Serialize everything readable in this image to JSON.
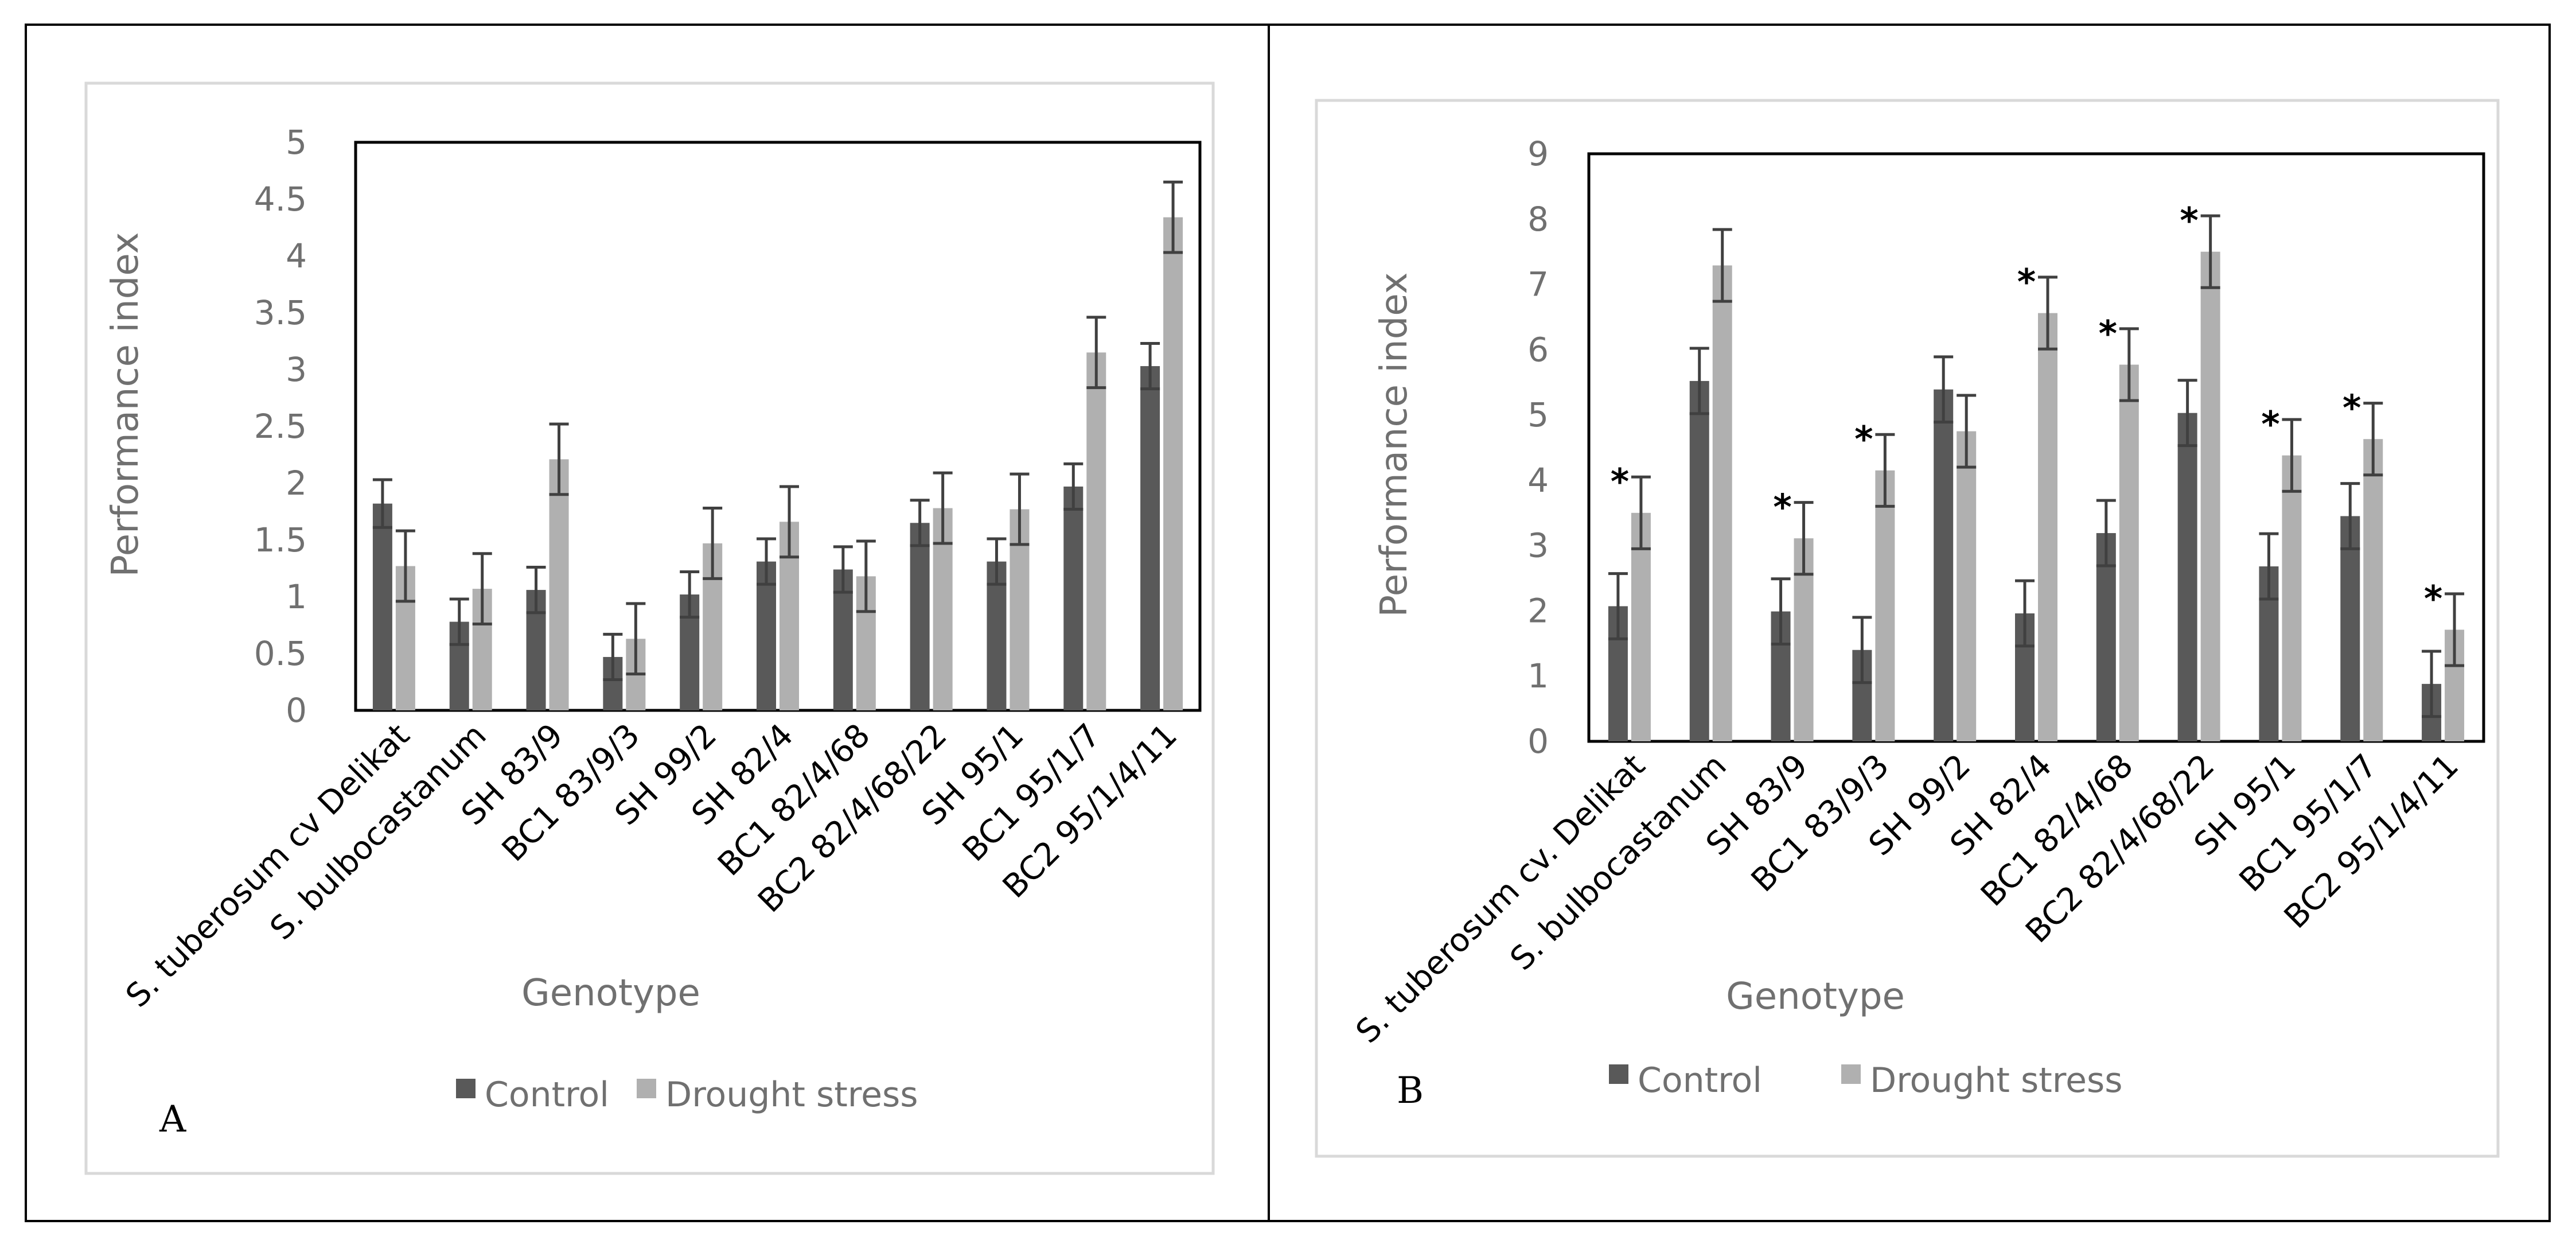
{
  "colors": {
    "control": "#595959",
    "drought": "#b0b0b0",
    "text": "#707070",
    "frame": "#000000",
    "panel_border": "#d9d9d9",
    "error_bar": "#404040"
  },
  "chart_data": [
    {
      "panel_label": "A",
      "type": "bar",
      "ylabel": "Performance index",
      "xlabel": "Genotype",
      "ylim": [
        0,
        5
      ],
      "yticks": [
        "0",
        "0.5",
        "1",
        "1.5",
        "2",
        "2.5",
        "3",
        "3.5",
        "4",
        "4.5",
        "5"
      ],
      "categories": [
        "S. tuberosum cv Delikat",
        "S. bulbocastanum",
        "SH 83/9",
        "BC1 83/9/3",
        "SH 99/2",
        "SH 82/4",
        "BC1 82/4/68",
        "BC2 82/4/68/22",
        "SH 95/1",
        "BC1 95/1/7",
        "BC2 95/1/4/11"
      ],
      "series": [
        {
          "name": "Control",
          "values": [
            1.82,
            0.78,
            1.06,
            0.47,
            1.02,
            1.31,
            1.24,
            1.65,
            1.31,
            1.97,
            3.03
          ],
          "errors": [
            0.21,
            0.2,
            0.2,
            0.2,
            0.2,
            0.2,
            0.2,
            0.2,
            0.2,
            0.2,
            0.2
          ]
        },
        {
          "name": "Drought stress",
          "values": [
            1.27,
            1.07,
            2.21,
            0.63,
            1.47,
            1.66,
            1.18,
            1.78,
            1.77,
            3.15,
            4.34
          ],
          "errors": [
            0.31,
            0.31,
            0.31,
            0.31,
            0.31,
            0.31,
            0.31,
            0.31,
            0.31,
            0.31,
            0.31
          ]
        }
      ],
      "legend": [
        "Control",
        "Drought stress"
      ],
      "significance": [
        false,
        false,
        false,
        false,
        false,
        false,
        false,
        false,
        false,
        false,
        false
      ]
    },
    {
      "panel_label": "B",
      "type": "bar",
      "ylabel": "Performance index",
      "xlabel": "Genotype",
      "ylim": [
        0,
        9
      ],
      "yticks": [
        "0",
        "1",
        "2",
        "3",
        "4",
        "5",
        "6",
        "7",
        "8",
        "9"
      ],
      "categories": [
        "S. tuberosum cv. Delikat",
        "S. bulbocastanum",
        "SH 83/9",
        "BC1 83/9/3",
        "SH 99/2",
        "SH 82/4",
        "BC1 82/4/68",
        "BC2 82/4/68/22",
        "SH 95/1",
        "BC1 95/1/7",
        "BC2 95/1/4/11"
      ],
      "series": [
        {
          "name": "Control",
          "values": [
            2.07,
            5.52,
            1.99,
            1.4,
            5.39,
            1.96,
            3.19,
            5.03,
            2.68,
            3.45,
            0.88
          ],
          "errors": [
            0.5,
            0.5,
            0.5,
            0.5,
            0.5,
            0.5,
            0.5,
            0.5,
            0.5,
            0.5,
            0.5
          ]
        },
        {
          "name": "Drought stress",
          "values": [
            3.5,
            7.29,
            3.11,
            4.15,
            4.75,
            6.56,
            5.77,
            7.5,
            4.38,
            4.63,
            1.71
          ],
          "errors": [
            0.55,
            0.55,
            0.55,
            0.55,
            0.55,
            0.55,
            0.55,
            0.55,
            0.55,
            0.55,
            0.55
          ]
        }
      ],
      "legend": [
        "Control",
        "Drought stress"
      ],
      "significance": [
        true,
        false,
        true,
        true,
        false,
        true,
        true,
        true,
        true,
        true,
        true
      ],
      "significance_marker": "*"
    }
  ]
}
